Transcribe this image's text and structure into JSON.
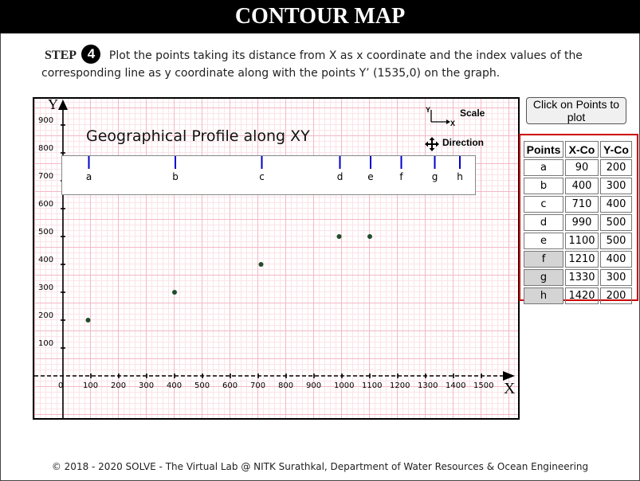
{
  "header": {
    "title": "CONTOUR MAP"
  },
  "step": {
    "label": "STEP",
    "number": "4",
    "instruction": "Plot the points taking its distance from X as x coordinate and the index values of the corresponding line as y coordinate along with the points Y’ (1535,0) on the graph."
  },
  "graph": {
    "profile_title": "Geographical Profile along XY",
    "scale_label": "Scale",
    "direction_label": "Direction",
    "x_axis_label": "X",
    "y_axis_label": "Y",
    "icons": [
      "scale-axes-icon",
      "move-arrows-icon"
    ],
    "colors": {
      "grid": "#f3b9c6",
      "profile_tick": "#0000cc",
      "point": "#1f4d2a"
    },
    "x_ticks": [
      0,
      100,
      200,
      300,
      400,
      500,
      600,
      700,
      800,
      900,
      1000,
      1100,
      1200,
      1300,
      1400,
      1500
    ],
    "y_ticks": [
      100,
      200,
      300,
      400,
      500,
      600,
      700,
      800,
      900
    ],
    "profile_marks": [
      {
        "label": "a",
        "x": 90
      },
      {
        "label": "b",
        "x": 400
      },
      {
        "label": "c",
        "x": 710
      },
      {
        "label": "d",
        "x": 990
      },
      {
        "label": "e",
        "x": 1100
      },
      {
        "label": "f",
        "x": 1210
      },
      {
        "label": "g",
        "x": 1330
      },
      {
        "label": "h",
        "x": 1420
      }
    ],
    "plotted_points": [
      {
        "x": 90,
        "y": 200
      },
      {
        "x": 400,
        "y": 300
      },
      {
        "x": 710,
        "y": 400
      },
      {
        "x": 990,
        "y": 500
      },
      {
        "x": 1100,
        "y": 500
      }
    ]
  },
  "button": {
    "label": "Click on Points to plot"
  },
  "table": {
    "headers": [
      "Points",
      "X-Co",
      "Y-Co"
    ],
    "rows": [
      [
        "a",
        "90",
        "200"
      ],
      [
        "b",
        "400",
        "300"
      ],
      [
        "c",
        "710",
        "400"
      ],
      [
        "d",
        "990",
        "500"
      ],
      [
        "e",
        "1100",
        "500"
      ],
      [
        "f",
        "1210",
        "400"
      ],
      [
        "g",
        "1330",
        "300"
      ],
      [
        "h",
        "1420",
        "200"
      ]
    ],
    "unplotted_rows": [
      "f",
      "g",
      "h"
    ]
  },
  "footer": {
    "text": "© 2018 - 2020 SOLVE - The Virtual Lab @ NITK Surathkal, Department of Water Resources & Ocean Engineering"
  }
}
